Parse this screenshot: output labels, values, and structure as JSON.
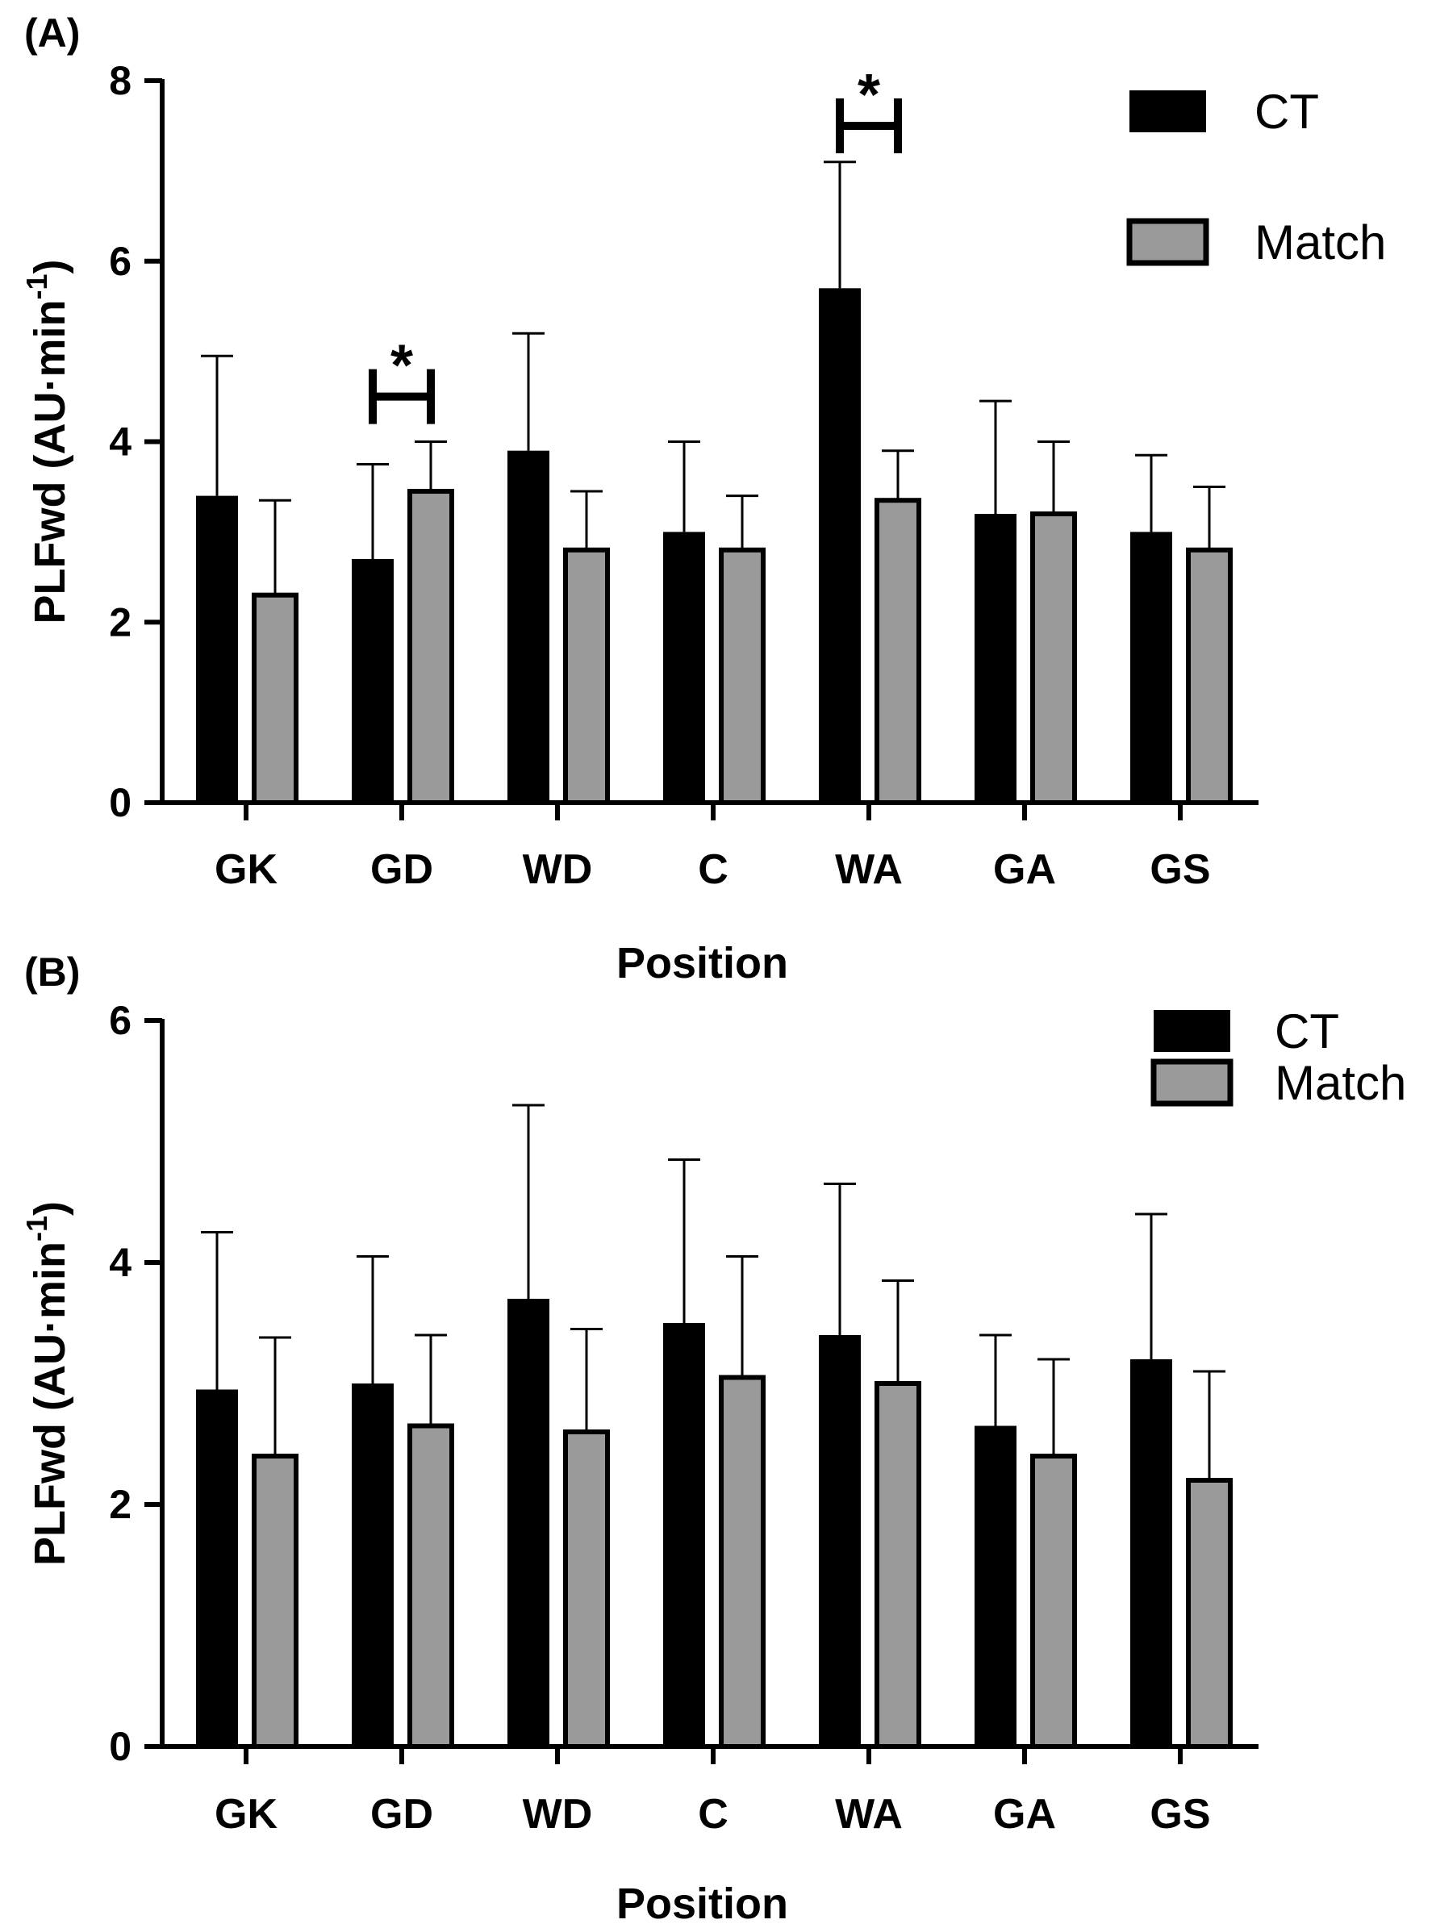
{
  "chart_data": [
    {
      "type": "bar",
      "panel_label": "(A)",
      "xlabel": "Position",
      "ylabel_main": "PLFwd (AU·min",
      "ylabel_sup": "-1",
      "ylabel_close": ")",
      "ylim": [
        0,
        8
      ],
      "yticks": [
        0,
        2,
        4,
        6,
        8
      ],
      "tick_labels": [
        "0",
        "2",
        "4",
        "6",
        "8"
      ],
      "categories": [
        "GK",
        "GD",
        "WD",
        "C",
        "WA",
        "GA",
        "GS"
      ],
      "series": [
        {
          "name": "CT",
          "color": "#000000",
          "values": [
            3.4,
            2.7,
            3.9,
            3.0,
            5.7,
            3.2,
            3.0
          ],
          "errors": [
            1.55,
            1.05,
            1.3,
            1.0,
            1.4,
            1.25,
            0.85
          ]
        },
        {
          "name": "Match",
          "color": "#9a9a9a",
          "values": [
            2.3,
            3.45,
            2.8,
            2.8,
            3.35,
            3.2,
            2.8
          ],
          "errors": [
            1.05,
            0.55,
            0.65,
            0.6,
            0.55,
            0.8,
            0.7
          ]
        }
      ],
      "significance": [
        {
          "category": "GD",
          "label": "*",
          "y": 4.5
        },
        {
          "category": "WA",
          "label": "*",
          "y": 7.5
        }
      ],
      "legend": {
        "position": "top-right",
        "entries": [
          "CT",
          "Match"
        ]
      },
      "grid": false
    },
    {
      "type": "bar",
      "panel_label": "(B)",
      "xlabel": "Position",
      "ylabel_main": "PLFwd (AU·min",
      "ylabel_sup": "-1",
      "ylabel_close": ")",
      "ylim": [
        0,
        6
      ],
      "yticks": [
        0,
        2,
        4,
        6
      ],
      "tick_labels": [
        "0",
        "2",
        "4",
        "6"
      ],
      "categories": [
        "GK",
        "GD",
        "WD",
        "C",
        "WA",
        "GA",
        "GS"
      ],
      "series": [
        {
          "name": "CT",
          "color": "#000000",
          "values": [
            2.95,
            3.0,
            3.7,
            3.5,
            3.4,
            2.65,
            3.2
          ],
          "errors": [
            1.3,
            1.05,
            1.6,
            1.35,
            1.25,
            0.75,
            1.2
          ]
        },
        {
          "name": "Match",
          "color": "#9a9a9a",
          "values": [
            2.4,
            2.65,
            2.6,
            3.05,
            3.0,
            2.4,
            2.2
          ],
          "errors": [
            0.98,
            0.75,
            0.85,
            1.0,
            0.85,
            0.8,
            0.9
          ]
        }
      ],
      "legend": {
        "position": "top-right",
        "entries": [
          "CT",
          "Match"
        ]
      },
      "grid": false
    }
  ]
}
